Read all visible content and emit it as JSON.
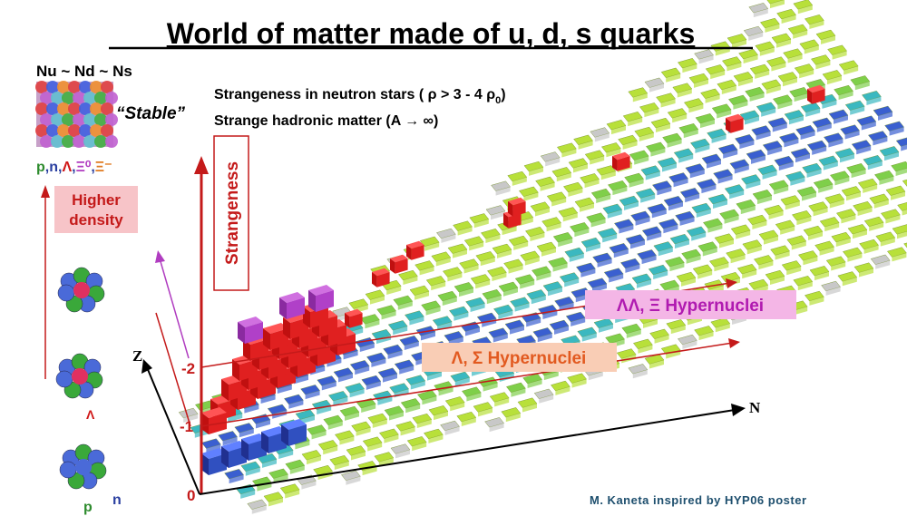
{
  "title": "World of matter made of u, d, s quarks",
  "composition": "Nu ~ Nd ~ Ns",
  "stable_label": "“Stable”",
  "particles": {
    "separator": ",",
    "items": [
      {
        "text": "p",
        "color": "#2e8b2e"
      },
      {
        "text": "n",
        "color": "#2a3fa0"
      },
      {
        "text": "Λ",
        "color": "#d01818"
      },
      {
        "text": "Ξ⁰",
        "color": "#b03cc0"
      },
      {
        "text": "Ξ⁻",
        "color": "#e07a20"
      }
    ]
  },
  "higher_density": [
    "Higher",
    "density"
  ],
  "notes": {
    "neutron_stars": {
      "text": "Strangeness in neutron stars ( ρ > 3 - 4 ρ",
      "subscript": "0",
      "close": ")"
    },
    "hadronic_matter": "Strange hadronic matter (A → ∞)"
  },
  "axes": {
    "strangeness": "Strangeness",
    "z": "Z",
    "n": "N",
    "levels": [
      "-2",
      "-1",
      "0"
    ]
  },
  "hypernuclei": {
    "double": "ΛΛ, Ξ Hypernuclei",
    "single": "Λ, Σ Hypernuclei"
  },
  "nuclei_labels": {
    "lambda": "Λ",
    "p": "p",
    "n": "n"
  },
  "credit": "M. Kaneta inspired by HYP06 poster"
}
